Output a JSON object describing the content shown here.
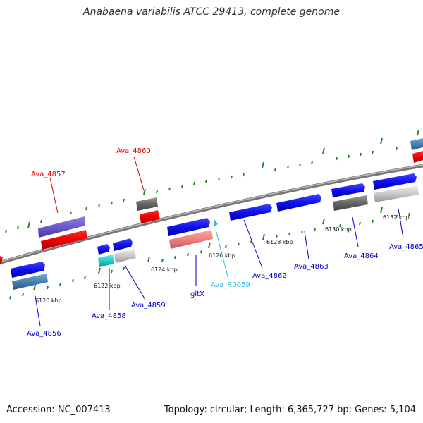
{
  "title": "Anabaena variabilis ATCC 29413, complete genome",
  "footer": {
    "accession": "Accession: NC_007413",
    "summary": "Topology: circular; Length: 6,365,727 bp; Genes: 5,104"
  },
  "scale_labels": [
    "6120 kbp",
    "6122 kbp",
    "6124 kbp",
    "6126 kbp",
    "6128 kbp",
    "6130 kbp",
    "6132 kbp"
  ],
  "gene_labels": [
    {
      "text": "Ava_4856",
      "color": "#0000cc"
    },
    {
      "text": "Ava_4857",
      "color": "#dd0000"
    },
    {
      "text": "Ava_4858",
      "color": "#0000cc"
    },
    {
      "text": "Ava_4859",
      "color": "#0000cc"
    },
    {
      "text": "Ava_4860",
      "color": "#dd0000"
    },
    {
      "text": "gltX",
      "color": "#0000cc"
    },
    {
      "text": "Ava_R0059",
      "color": "#33bbdd"
    },
    {
      "text": "Ava_4862",
      "color": "#0000cc"
    },
    {
      "text": "Ava_4863",
      "color": "#0000cc"
    },
    {
      "text": "Ava_4864",
      "color": "#0000cc"
    },
    {
      "text": "Ava_4865",
      "color": "#0000cc"
    }
  ],
  "colors": {
    "backbone": "#888888",
    "tick_marks": "#228822",
    "forward_strand_gene": "#1010ee",
    "reverse_strand_gene": "#ee0000",
    "rna_gene": "#22cccc",
    "pseudo_gene": "#777777"
  }
}
